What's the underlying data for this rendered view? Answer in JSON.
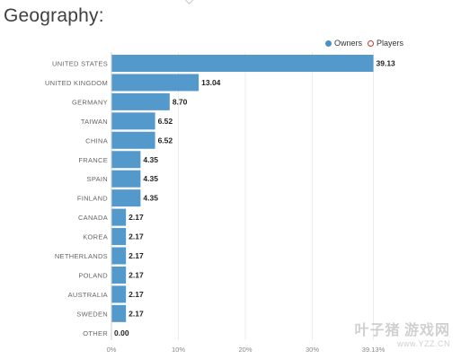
{
  "title": "Geography:",
  "legend": {
    "owners": "Owners",
    "players": "Players"
  },
  "colors": {
    "bar": "#5499cc",
    "owners_dot": "#4a90c8",
    "players_ring": "#c0392b"
  },
  "watermark": {
    "brand": "叶子猪",
    "sub": "游戏网",
    "url": "www.YZZ.CN"
  },
  "chart_data": {
    "type": "bar",
    "orientation": "horizontal",
    "title": "Geography:",
    "series": [
      {
        "name": "Owners"
      }
    ],
    "categories": [
      "UNITED STATES",
      "UNITED KINGDOM",
      "GERMANY",
      "TAIWAN",
      "CHINA",
      "FRANCE",
      "SPAIN",
      "FINLAND",
      "CANADA",
      "KOREA",
      "NETHERLANDS",
      "POLAND",
      "AUSTRALIA",
      "SWEDEN",
      "OTHER"
    ],
    "values": [
      39.13,
      13.04,
      8.7,
      6.52,
      6.52,
      4.35,
      4.35,
      4.35,
      2.17,
      2.17,
      2.17,
      2.17,
      2.17,
      2.17,
      0.0
    ],
    "value_labels": [
      "39.13",
      "13.04",
      "8.70",
      "6.52",
      "6.52",
      "4.35",
      "4.35",
      "4.35",
      "2.17",
      "2.17",
      "2.17",
      "2.17",
      "2.17",
      "2.17",
      "0.00"
    ],
    "xlim": [
      0,
      40
    ],
    "xticks": [
      "0%",
      "10%",
      "20%",
      "30%",
      "39.13%"
    ],
    "xtick_values": [
      0,
      10,
      20,
      30,
      39.13
    ],
    "legend_position": "top-right"
  }
}
